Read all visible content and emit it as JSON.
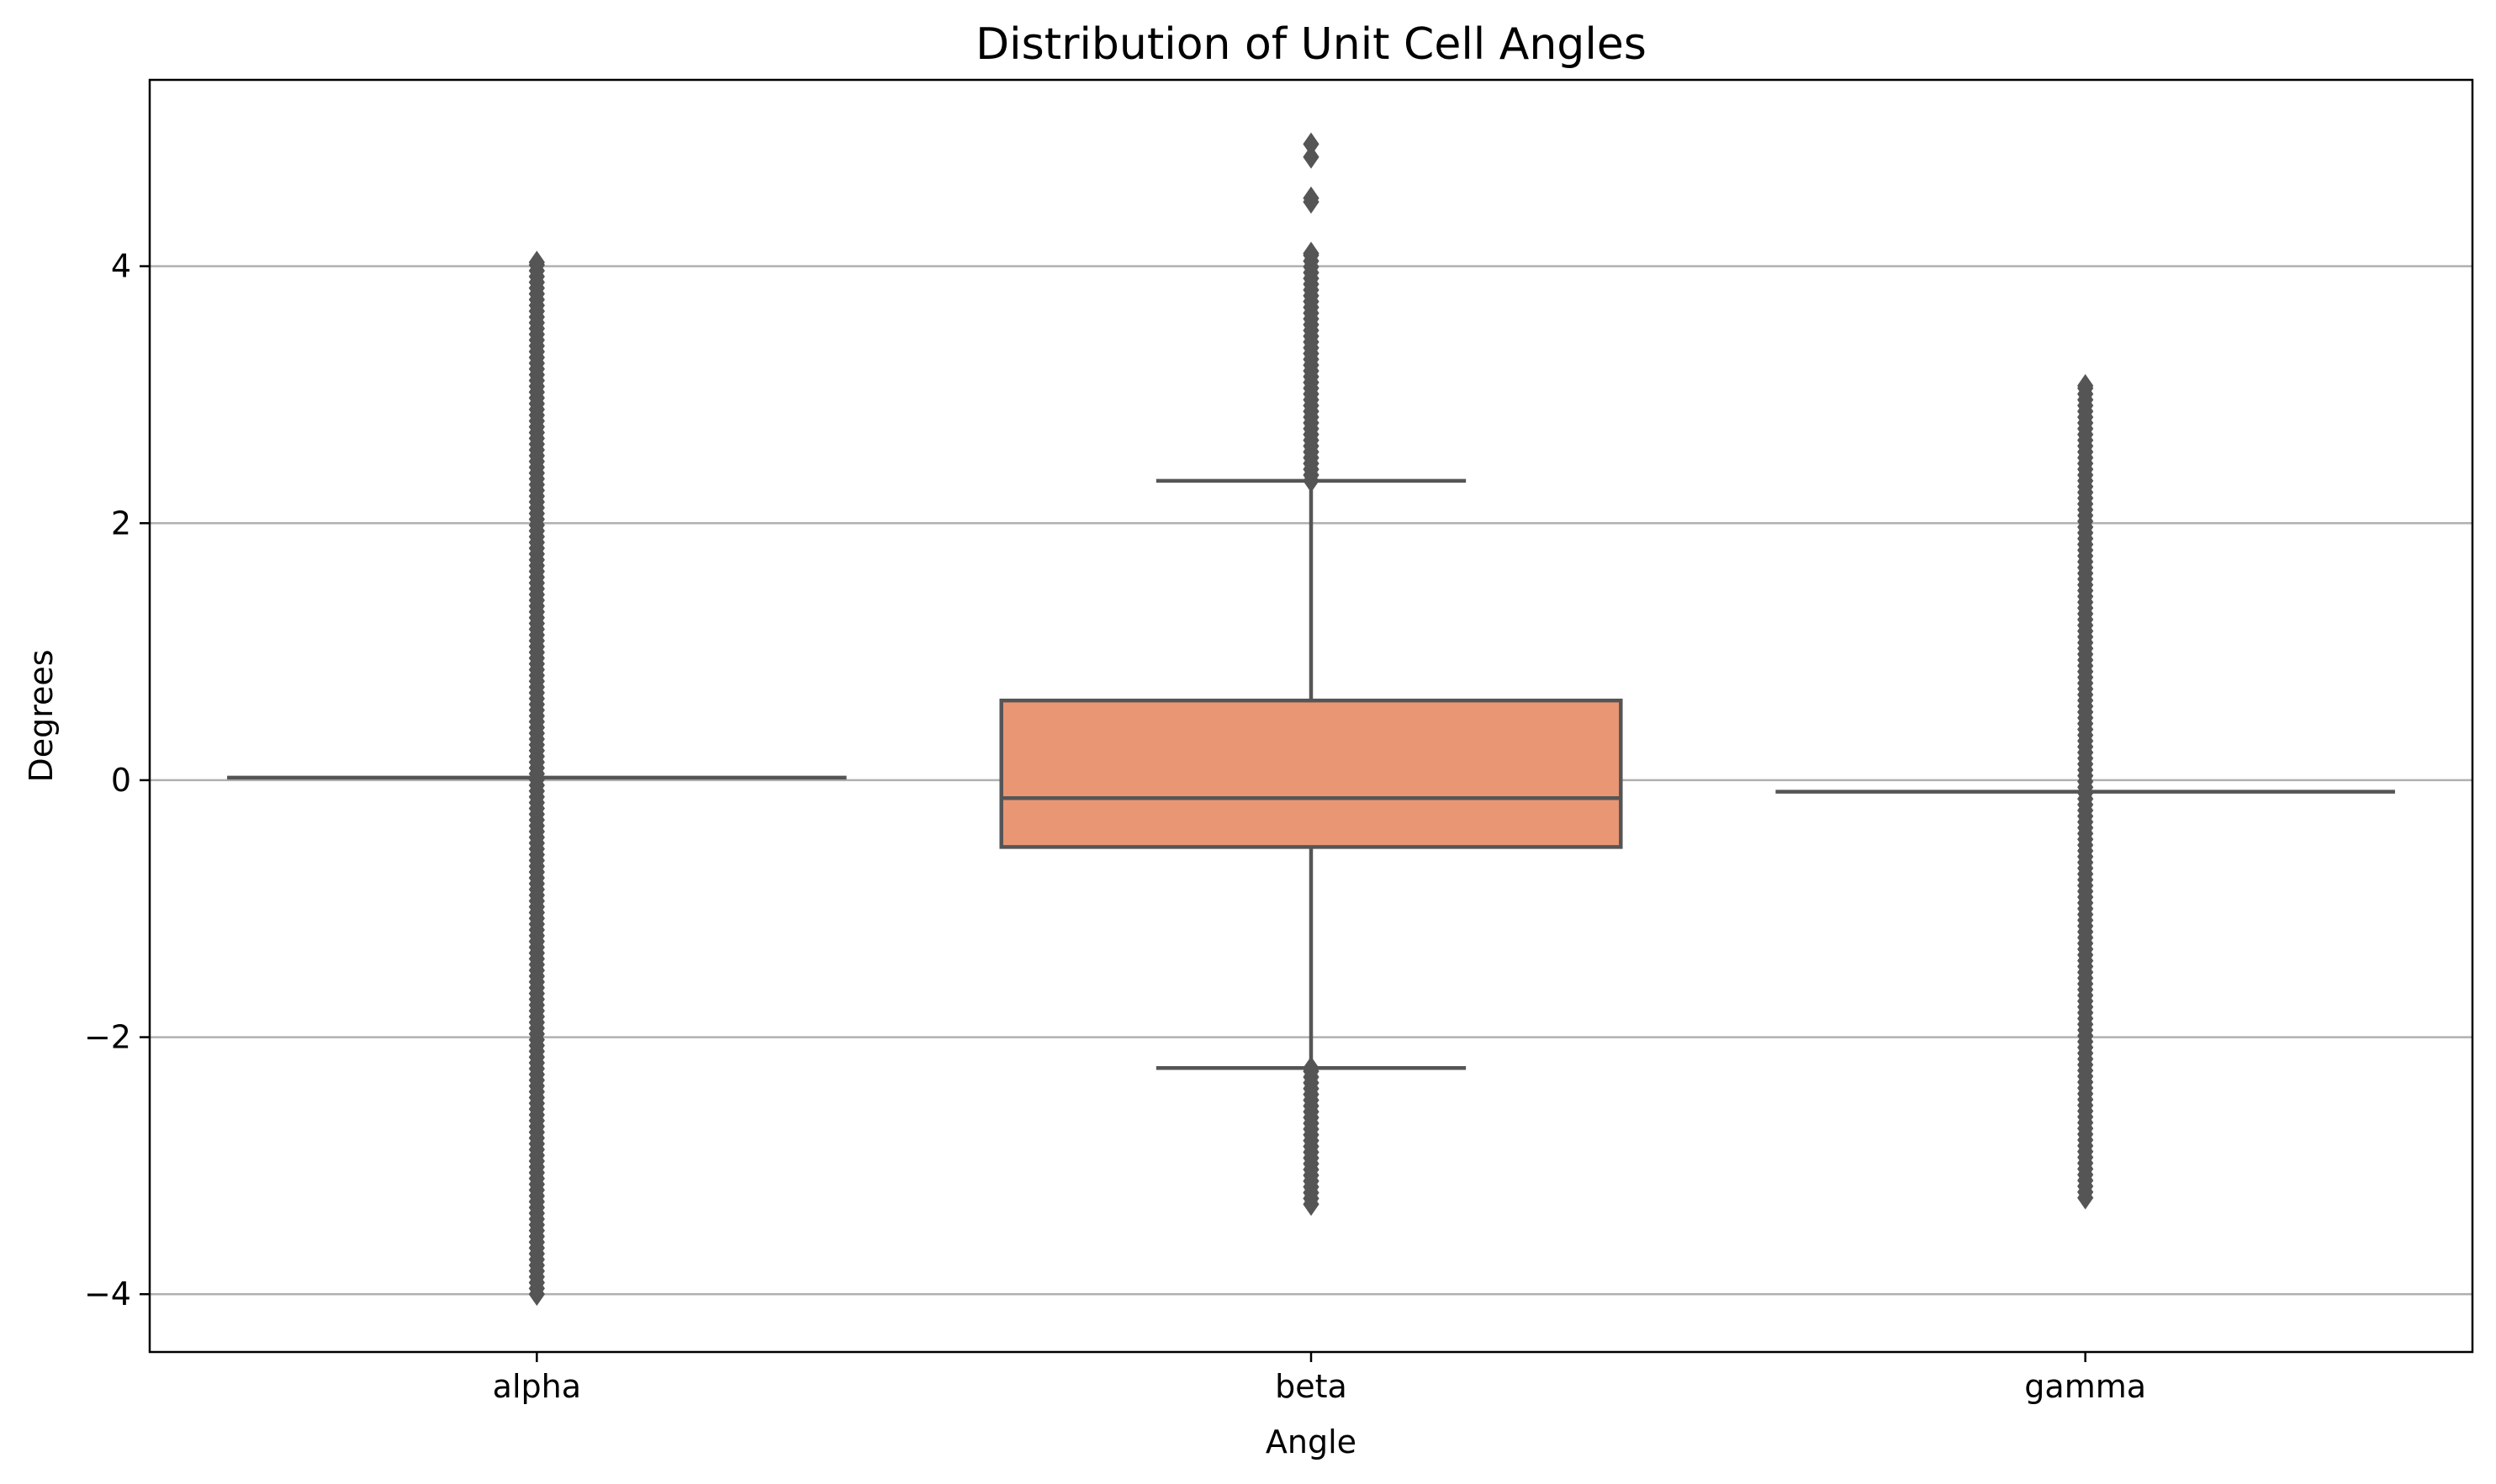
{
  "chart_data": {
    "type": "box",
    "title": "Distribution of Unit Cell Angles",
    "xlabel": "Angle",
    "ylabel": "Degrees",
    "categories": [
      "alpha",
      "beta",
      "gamma"
    ],
    "ylim": [
      -4.45,
      5.45
    ],
    "yticks": [
      -4,
      -2,
      0,
      2,
      4
    ],
    "ytick_labels": [
      "−4",
      "−2",
      "0",
      "2",
      "4"
    ],
    "grid": {
      "y": true,
      "x": false
    },
    "colors": {
      "box_fill": "#e99675",
      "line": "#555555",
      "grid": "#b0b0b0",
      "axis": "#000000"
    },
    "boxes": [
      {
        "category": "alpha",
        "q1": 0.02,
        "median": 0.02,
        "q3": 0.02,
        "whisker_low": 0.02,
        "whisker_high": 0.02,
        "outlier_range": [
          -4.0,
          4.03
        ],
        "outliers_sparse": []
      },
      {
        "category": "beta",
        "q1": -0.52,
        "median": -0.14,
        "q3": 0.62,
        "whisker_low": -2.24,
        "whisker_high": 2.33,
        "outlier_range_high": [
          2.33,
          4.1
        ],
        "outlier_range_low": [
          -3.3,
          -2.24
        ],
        "outliers_sparse": [
          4.5,
          4.53,
          4.85,
          4.95
        ]
      },
      {
        "category": "gamma",
        "q1": -0.09,
        "median": -0.09,
        "q3": -0.09,
        "whisker_low": -0.09,
        "whisker_high": -0.09,
        "outlier_range": [
          -3.25,
          3.07
        ],
        "outliers_sparse": []
      }
    ]
  }
}
